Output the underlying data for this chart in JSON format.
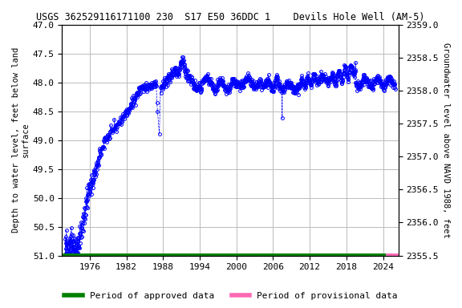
{
  "title": "USGS 362529116171100 230  S17 E50 36DDC 1    Devils Hole Well (AM-5)",
  "ylabel_left": "Depth to water level, feet below land\nsurface",
  "ylabel_right": "Groundwater level above NAVD 1988, feet",
  "ylim_left_top": 47.0,
  "ylim_left_bottom": 51.0,
  "ylim_right_top": 2359.0,
  "ylim_right_bottom": 2355.5,
  "xlim_left": 1971.5,
  "xlim_right": 2026.5,
  "xticks": [
    1976,
    1982,
    1988,
    1994,
    2000,
    2006,
    2012,
    2018,
    2024
  ],
  "yticks_left": [
    47.0,
    47.5,
    48.0,
    48.5,
    49.0,
    49.5,
    50.0,
    50.5,
    51.0
  ],
  "yticks_right": [
    2359.0,
    2358.5,
    2358.0,
    2357.5,
    2357.0,
    2356.5,
    2356.0,
    2355.5
  ],
  "data_color": "#0000ff",
  "approved_color": "#008000",
  "provisional_color": "#ff69b4",
  "background_color": "#ffffff",
  "grid_color": "#bbbbbb",
  "title_fontsize": 8.5,
  "axis_label_fontsize": 7.5,
  "tick_fontsize": 8,
  "legend_fontsize": 8,
  "approved_xstart": 1971.5,
  "approved_xend": 2024.5,
  "provisional_xstart": 2024.5,
  "provisional_xend": 2026.5
}
